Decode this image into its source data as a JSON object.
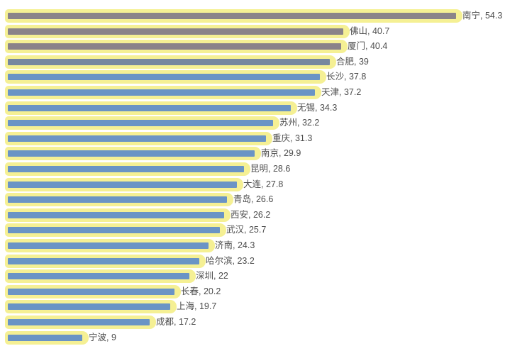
{
  "chart_data": {
    "type": "bar",
    "orientation": "horizontal",
    "title": "",
    "xlabel": "",
    "ylabel": "",
    "xlim": [
      0,
      60
    ],
    "grid": false,
    "legend": false,
    "categories": [
      "南宁",
      "佛山",
      "厦门",
      "合肥",
      "长沙",
      "天津",
      "无锡",
      "苏州",
      "重庆",
      "南京",
      "昆明",
      "大连",
      "青岛",
      "西安",
      "武汉",
      "济南",
      "哈尔滨",
      "深圳",
      "长春",
      "上海",
      "成都",
      "宁波"
    ],
    "values": [
      54.3,
      40.7,
      40.4,
      39,
      37.8,
      37.2,
      34.3,
      32.2,
      31.3,
      29.9,
      28.6,
      27.8,
      26.6,
      26.2,
      25.7,
      24.3,
      23.2,
      22,
      20.2,
      19.7,
      17.2,
      9
    ],
    "data_labels": [
      "南宁, 54.3",
      "佛山, 40.7",
      "厦门, 40.4",
      "合肥, 39",
      "长沙, 37.8",
      "天津, 37.2",
      "无锡, 34.3",
      "苏州, 32.2",
      "重庆, 31.3",
      "南京, 29.9",
      "昆明, 28.6",
      "大连, 27.8",
      "青岛, 26.6",
      "西安, 26.2",
      "武汉, 25.7",
      "济南, 24.3",
      "哈尔滨, 23.2",
      "深圳, 22",
      "长春, 20.2",
      "上海, 19.7",
      "成都, 17.2",
      "宁波, 9"
    ],
    "bar_colors": [
      "#8A8389",
      "#8A8389",
      "#8A8389",
      "#76879F",
      "#6A94C5",
      "#6A94C5",
      "#6A94C5",
      "#6A94C5",
      "#6A94C5",
      "#6A94C5",
      "#6A94C5",
      "#6A94C5",
      "#6A94C5",
      "#6A94C5",
      "#6A94C5",
      "#6A94C5",
      "#6A94C5",
      "#6A94C5",
      "#6A94C5",
      "#6A94C5",
      "#6A94C5",
      "#6A94C5"
    ],
    "colors": {
      "highlight_halo": "#F5F094",
      "gray_bar": "#8A8389",
      "transition_bar": "#76879F",
      "blue_bar": "#6A94C5",
      "label_text": "#4D4D4D",
      "background": "#FFFFFF"
    }
  }
}
